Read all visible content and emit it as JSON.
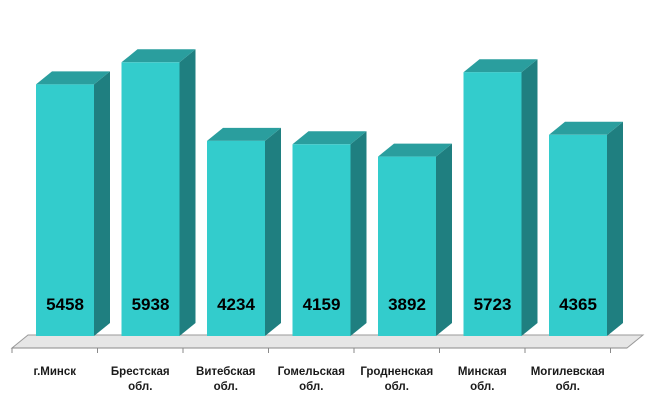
{
  "chart_data": {
    "type": "bar",
    "categories": [
      [
        "г.Минск"
      ],
      [
        "Брестская",
        "обл."
      ],
      [
        "Витебская",
        "обл."
      ],
      [
        "Гомельская",
        "обл."
      ],
      [
        "Гродненская",
        "обл."
      ],
      [
        "Минская",
        "обл."
      ],
      [
        "Могилевская",
        "обл."
      ]
    ],
    "values": [
      5458,
      5938,
      4234,
      4159,
      3892,
      5723,
      4365
    ],
    "title": "",
    "xlabel": "",
    "ylabel": "",
    "ylim": [
      0,
      6400
    ],
    "style": "3d-column",
    "colors": {
      "front": "#33CCCC",
      "side": "#1F7F80",
      "top": "#2A9E9E",
      "floor": "#E6E6E6"
    }
  }
}
